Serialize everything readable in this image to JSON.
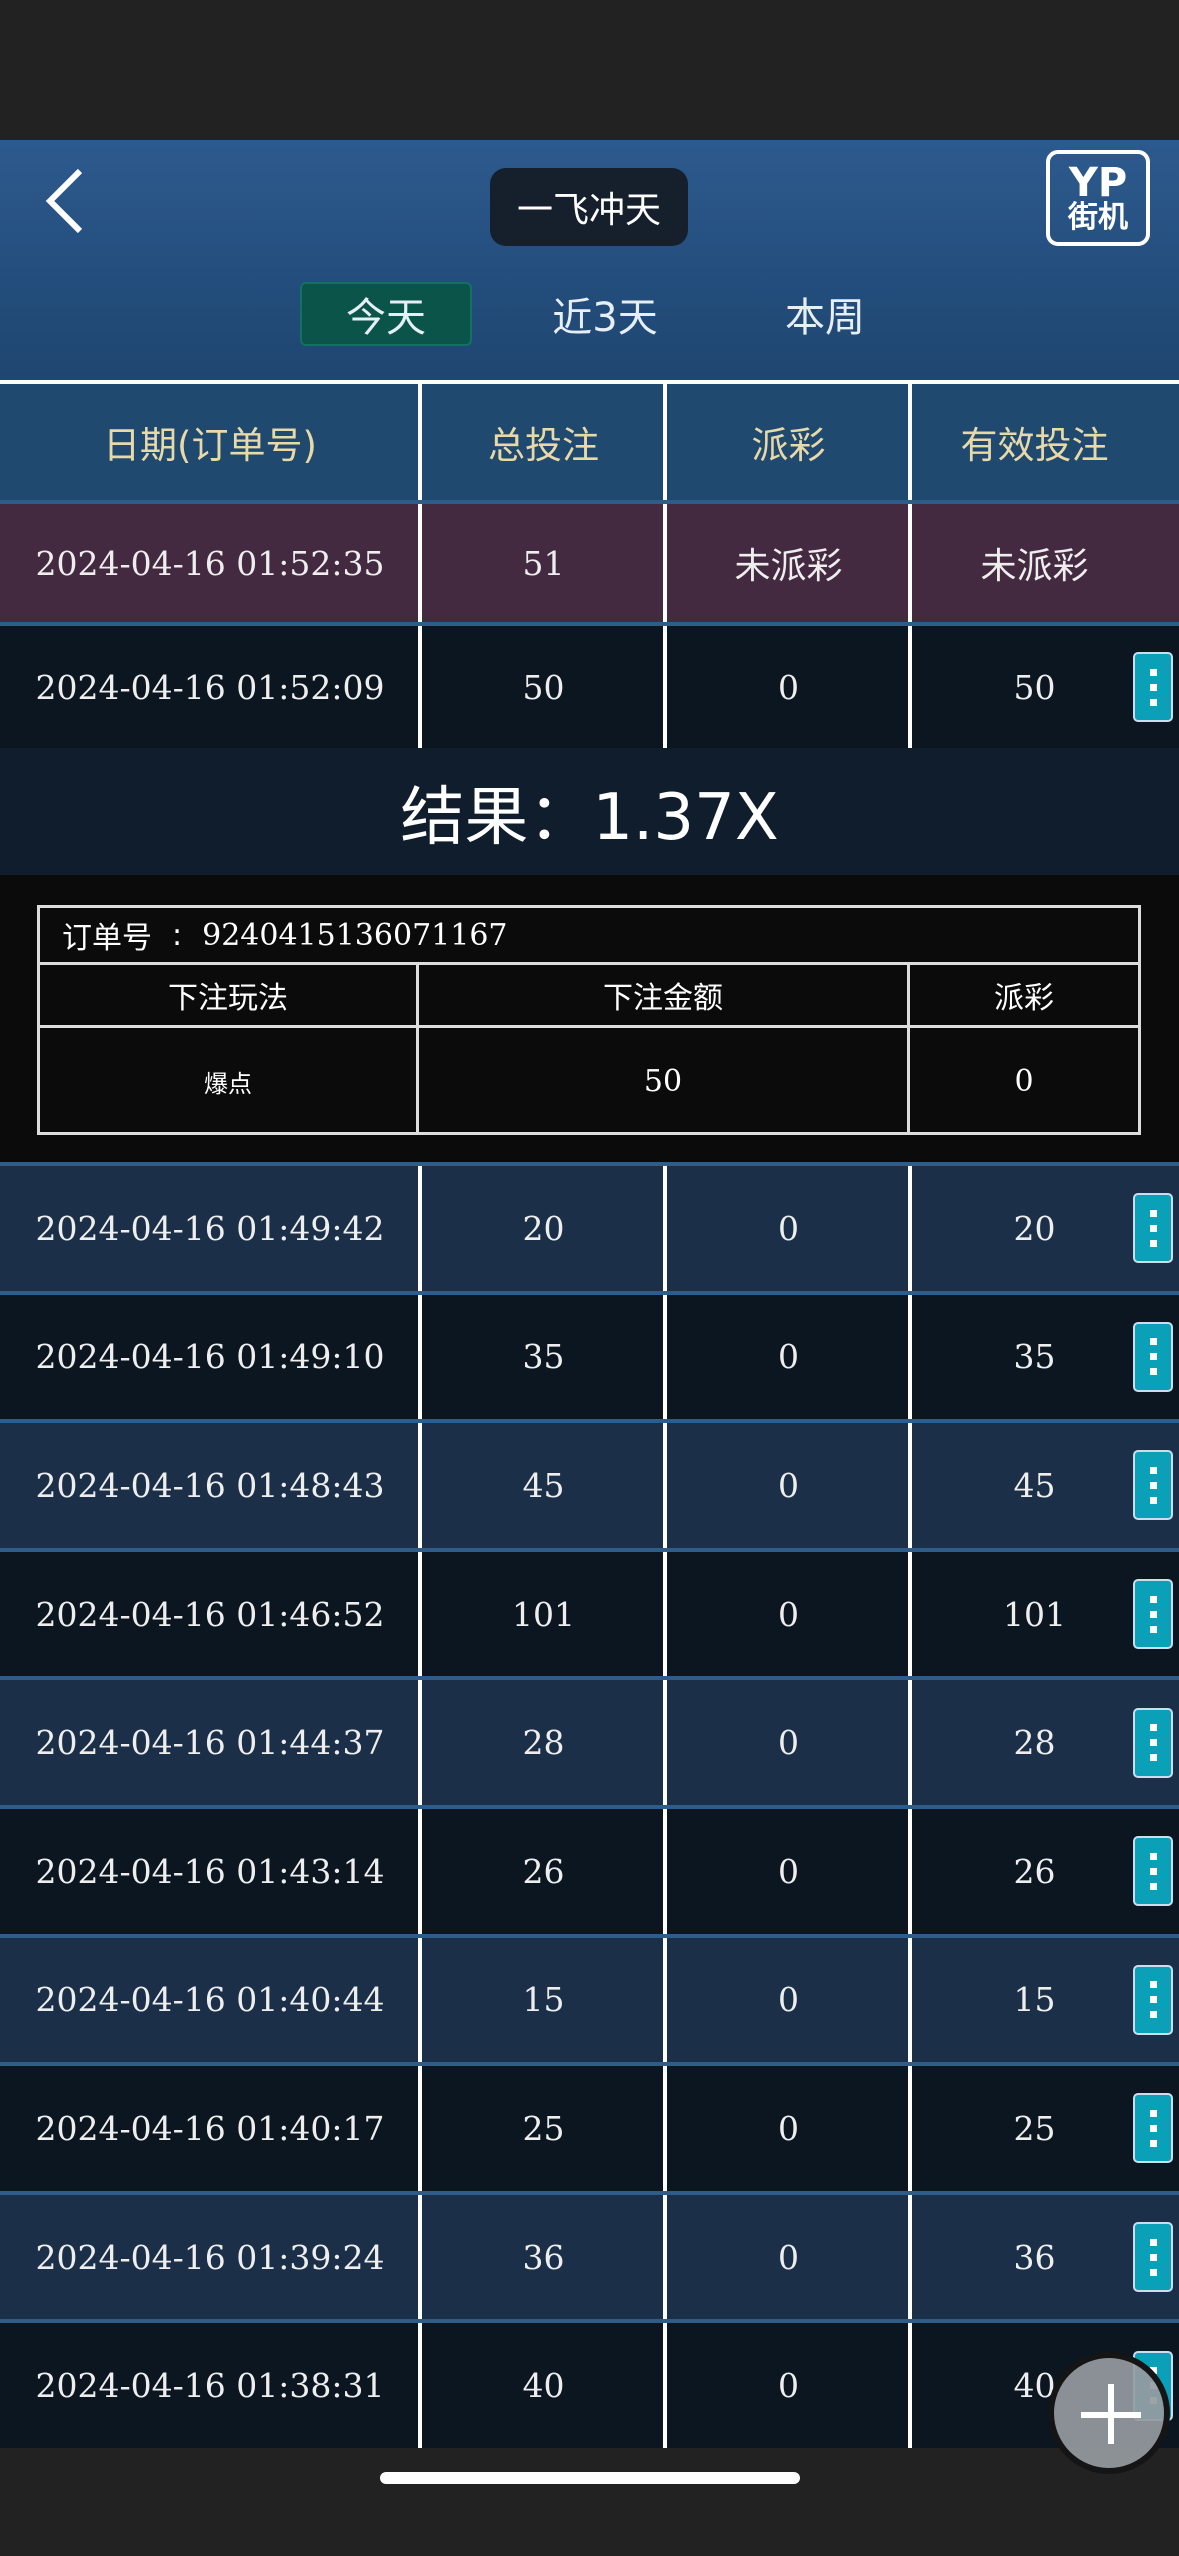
{
  "header": {
    "title": "一飞冲天",
    "logo_line1": "YP",
    "logo_line2": "街机"
  },
  "tabs": [
    {
      "label": "今天",
      "active": true
    },
    {
      "label": "近3天",
      "active": false
    },
    {
      "label": "本周",
      "active": false
    }
  ],
  "table": {
    "columns": [
      "日期(订单号)",
      "总投注",
      "派彩",
      "有效投注"
    ],
    "rows": [
      {
        "date": "2024-04-16 01:52:35",
        "bet": "51",
        "payout": "未派彩",
        "valid": "未派彩",
        "pending": true
      },
      {
        "date": "2024-04-16 01:52:09",
        "bet": "50",
        "payout": "0",
        "valid": "50"
      },
      {
        "date": "2024-04-16 01:49:42",
        "bet": "20",
        "payout": "0",
        "valid": "20"
      },
      {
        "date": "2024-04-16 01:49:10",
        "bet": "35",
        "payout": "0",
        "valid": "35"
      },
      {
        "date": "2024-04-16 01:48:43",
        "bet": "45",
        "payout": "0",
        "valid": "45"
      },
      {
        "date": "2024-04-16 01:46:52",
        "bet": "101",
        "payout": "0",
        "valid": "101"
      },
      {
        "date": "2024-04-16 01:44:37",
        "bet": "28",
        "payout": "0",
        "valid": "28"
      },
      {
        "date": "2024-04-16 01:43:14",
        "bet": "26",
        "payout": "0",
        "valid": "26"
      },
      {
        "date": "2024-04-16 01:40:44",
        "bet": "15",
        "payout": "0",
        "valid": "15"
      },
      {
        "date": "2024-04-16 01:40:17",
        "bet": "25",
        "payout": "0",
        "valid": "25"
      },
      {
        "date": "2024-04-16 01:39:24",
        "bet": "36",
        "payout": "0",
        "valid": "36"
      },
      {
        "date": "2024-04-16 01:38:31",
        "bet": "40",
        "payout": "0",
        "valid": "40"
      }
    ]
  },
  "detail": {
    "result": "结果：1.37X",
    "order_label": "订单号",
    "order_sep": ":",
    "order_no": "9240415136071167",
    "columns": [
      "下注玩法",
      "下注金额",
      "派彩"
    ],
    "values": [
      "爆点",
      "50",
      "0"
    ]
  },
  "colors": {
    "active_tab": "#0b5449",
    "menu_button": "#0aa0b8",
    "header_text": "#e8d9a8",
    "pending_row": "#442a40"
  }
}
